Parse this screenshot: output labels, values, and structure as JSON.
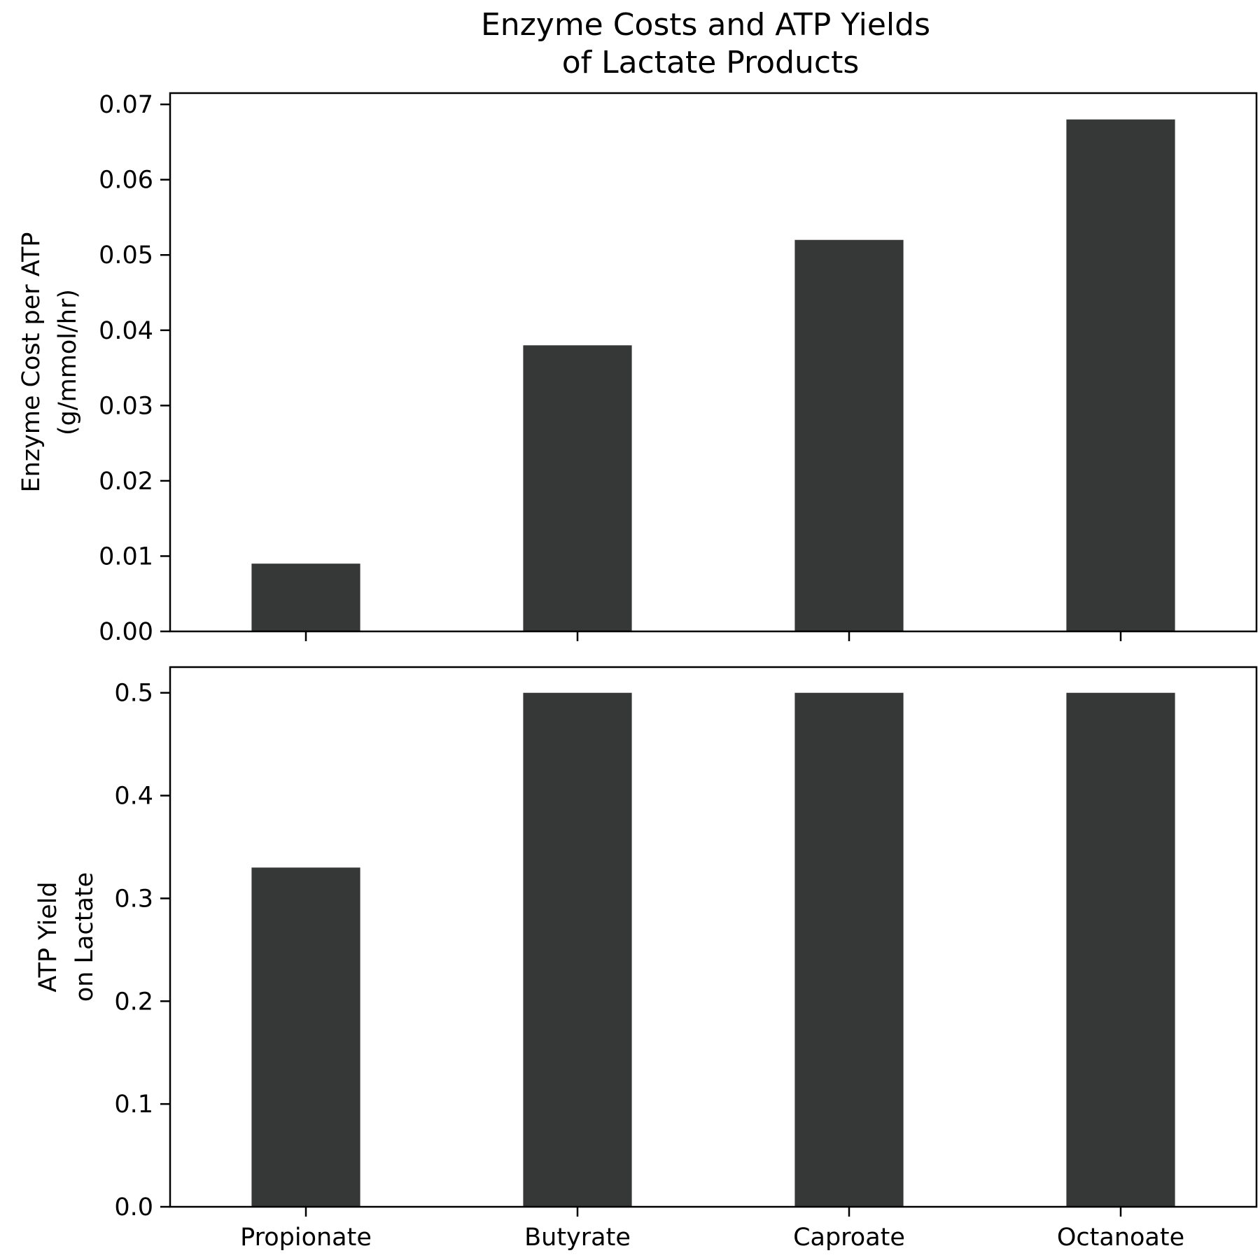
{
  "chart_data": [
    {
      "type": "bar",
      "title": "Enzyme Costs and ATP Yields\nof Lactate Products",
      "categories": [
        "Propionate",
        "Butyrate",
        "Caproate",
        "Octanoate"
      ],
      "values": [
        0.009,
        0.038,
        0.052,
        0.068
      ],
      "ylabel": "Enzyme Cost per ATP\n(g/mmol/hr)",
      "ylim": [
        0,
        0.0715
      ],
      "yticks": [
        "0.00",
        "0.01",
        "0.02",
        "0.03",
        "0.04",
        "0.05",
        "0.06",
        "0.07"
      ],
      "show_xtick_labels": false,
      "grid": false,
      "bar_color": "#363737"
    },
    {
      "type": "bar",
      "categories": [
        "Propionate",
        "Butyrate",
        "Caproate",
        "Octanoate"
      ],
      "values": [
        0.33,
        0.5,
        0.5,
        0.5
      ],
      "ylabel": "ATP Yield\non Lactate",
      "ylim": [
        0,
        0.525
      ],
      "yticks": [
        "0.0",
        "0.1",
        "0.2",
        "0.3",
        "0.4",
        "0.5"
      ],
      "show_xtick_labels": true,
      "grid": false,
      "bar_color": "#363737"
    }
  ]
}
